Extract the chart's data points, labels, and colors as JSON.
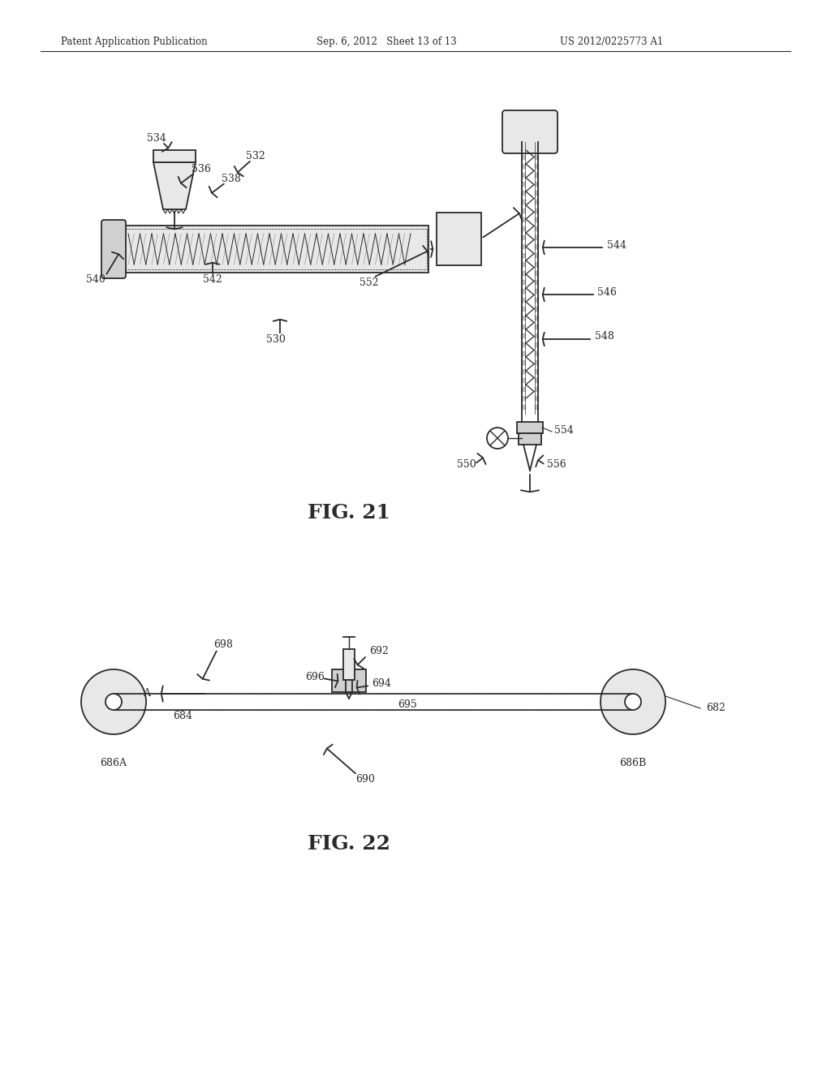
{
  "header_left": "Patent Application Publication",
  "header_mid": "Sep. 6, 2012   Sheet 13 of 13",
  "header_right": "US 2012/0225773 A1",
  "fig21_label": "FIG. 21",
  "fig22_label": "FIG. 22",
  "bg_color": "#ffffff",
  "line_color": "#2a2a2a",
  "gray_light": "#e8e8e8",
  "gray_med": "#d0d0d0",
  "gray_dark": "#b0b0b0"
}
